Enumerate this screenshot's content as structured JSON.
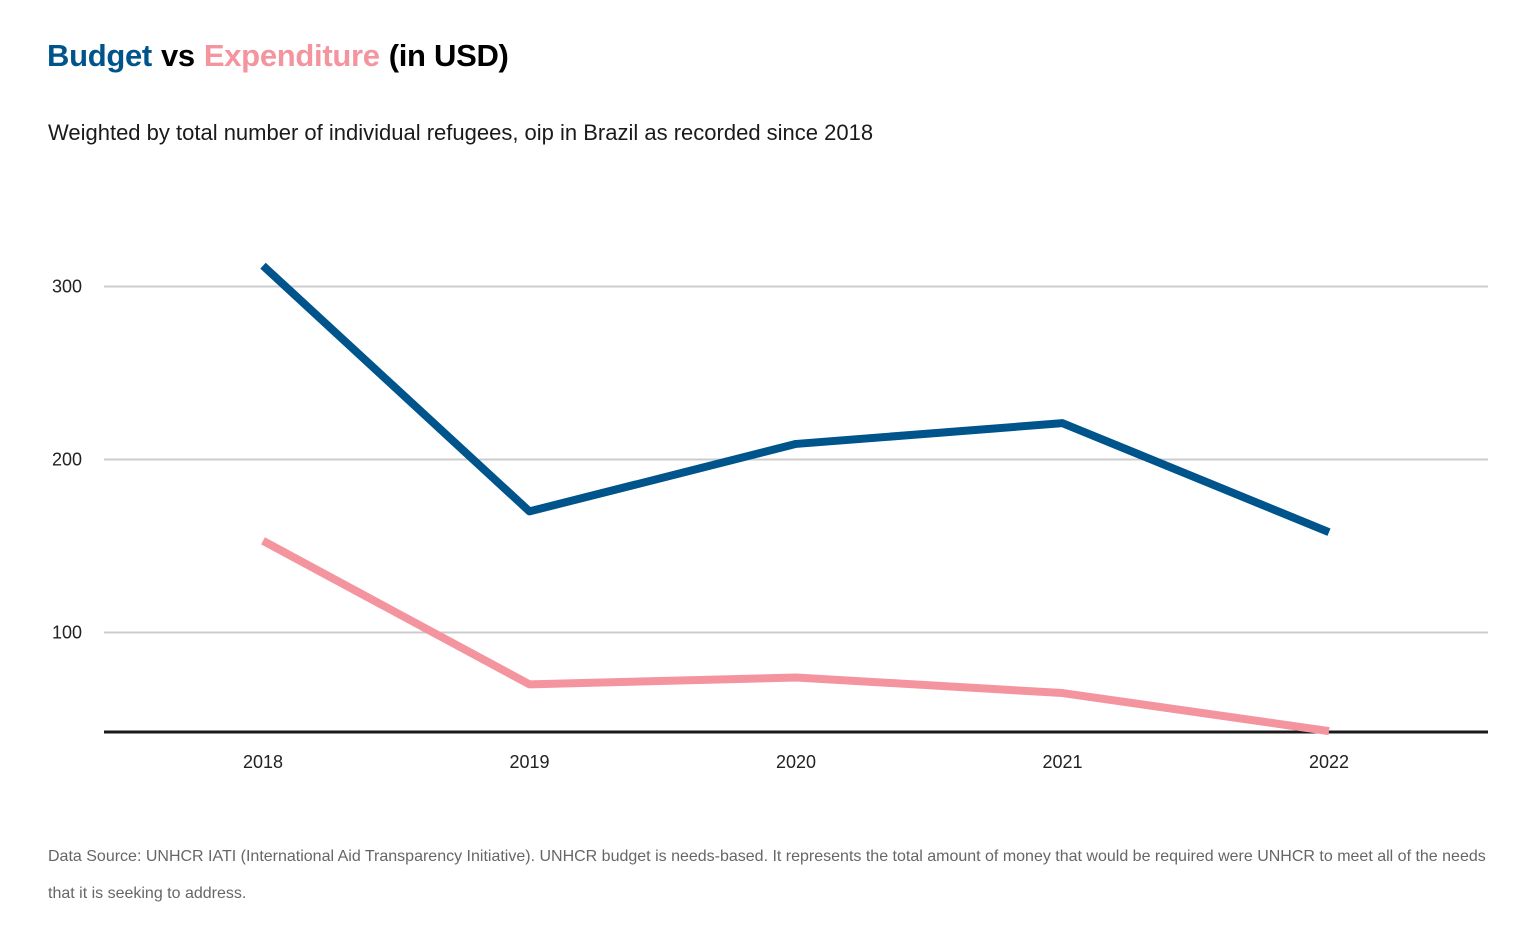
{
  "header": {
    "title_budget": "Budget",
    "title_vs": "vs",
    "title_expenditure": "Expenditure",
    "title_unit": "(in USD)",
    "subtitle": "Weighted by total number of individual refugees, oip in Brazil as recorded since 2018"
  },
  "footnote": "Data Source: UNHCR IATI (International Aid Transparency Initiative). UNHCR budget is needs-based. It represents the total amount of money that would be required were UNHCR to meet all of the needs that it is seeking to address.",
  "colors": {
    "budget": "#00548c",
    "expenditure": "#f4949f",
    "grid": "#cccccc",
    "axis": "#1a1a1a"
  },
  "chart_data": {
    "type": "line",
    "x": [
      "2018",
      "2019",
      "2020",
      "2021",
      "2022"
    ],
    "series": [
      {
        "name": "Budget",
        "values": [
          312,
          170,
          209,
          221,
          158
        ]
      },
      {
        "name": "Expenditure",
        "values": [
          153,
          70,
          74,
          65,
          43
        ]
      }
    ],
    "yticks": [
      100,
      200,
      300
    ],
    "ylim": [
      43,
      330
    ],
    "grid": true,
    "legend": "in title"
  }
}
